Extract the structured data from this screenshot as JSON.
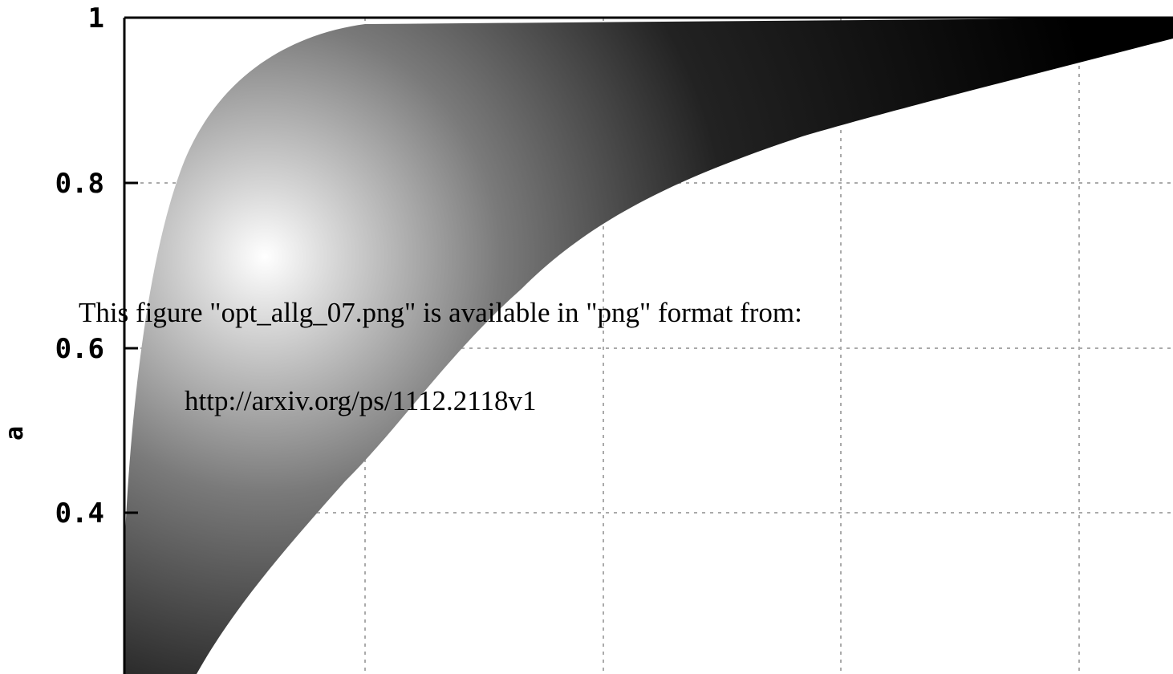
{
  "chart_data": {
    "type": "heatmap",
    "ylabel": "a",
    "yticks": [
      "1",
      "0.8",
      "0.6",
      "0.4"
    ],
    "ylim": [
      0.21,
      1.0
    ],
    "grid": true,
    "colormap": [
      "#000000",
      "#ffffff"
    ]
  },
  "notice": {
    "line": "This figure \"opt_allg_07.png\" is available in \"png\"  format from:",
    "url": "http://arxiv.org/ps/1112.2118v1"
  }
}
